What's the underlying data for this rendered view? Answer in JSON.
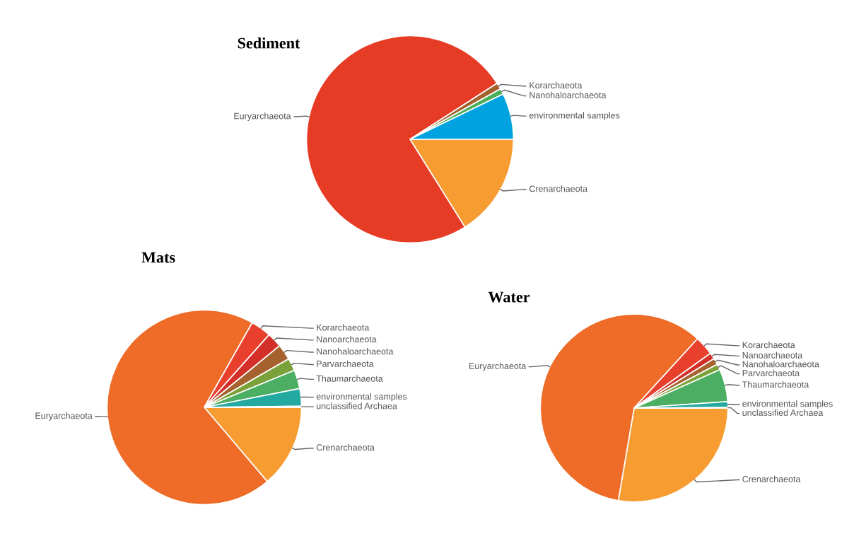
{
  "chart_data": [
    {
      "type": "pie",
      "title": "Sediment",
      "categories": [
        "Crenarchaeota",
        "Euryarchaeota",
        "Korarchaeota",
        "Nanohaloarchaeota",
        "environmental samples"
      ],
      "values": [
        16.1,
        74.8,
        1.0,
        0.9,
        7.2
      ],
      "colors": [
        "#f69c31",
        "#e63b25",
        "#a5622e",
        "#4cae58",
        "#00a3e0"
      ]
    },
    {
      "type": "pie",
      "title": "Mats",
      "categories": [
        "Crenarchaeota",
        "Euryarchaeota",
        "Korarchaeota",
        "Nanoarchaeota",
        "Nanohaloarchaeota",
        "Parvarchaeota",
        "Thaumarchaeota",
        "environmental samples",
        "unclassified Archaea"
      ],
      "values": [
        13.8,
        69.4,
        3.4,
        2.5,
        2.6,
        2.1,
        3.1,
        2.9,
        0.2
      ],
      "colors": [
        "#f69c31",
        "#ee6b28",
        "#e8402c",
        "#d3302a",
        "#a5622e",
        "#7ba23a",
        "#4cae62",
        "#23a9a0",
        "#2c7fb8"
      ]
    },
    {
      "type": "pie",
      "title": "Water",
      "categories": [
        "Crenarchaeota",
        "Euryarchaeota",
        "Korarchaeota",
        "Nanoarchaeota",
        "Nanohaloarchaeota",
        "Parvarchaeota",
        "Thaumarchaeota",
        "environmental samples",
        "unclassified Archaea"
      ],
      "values": [
        27.7,
        59.1,
        3.3,
        1.1,
        1.1,
        1.0,
        5.6,
        1.0,
        0.1
      ],
      "colors": [
        "#f69c31",
        "#ee6b28",
        "#e8402c",
        "#d3302a",
        "#a5622e",
        "#7ba23a",
        "#4cae62",
        "#23a9a0",
        "#2c7fb8"
      ]
    }
  ]
}
